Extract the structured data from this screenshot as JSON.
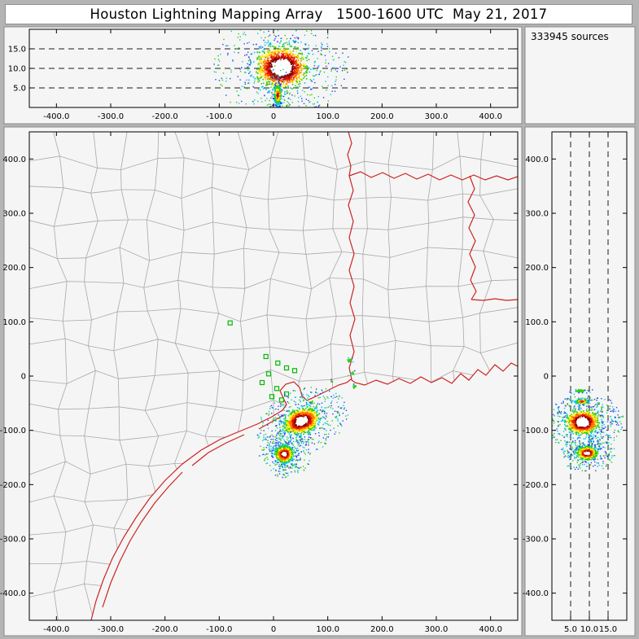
{
  "window": {
    "title": "Houston Lightning Mapping Array   1500-1600 UTC  May 21, 2017"
  },
  "sources_label": "333945 sources",
  "colors": {
    "frame": "#b4b4b4",
    "panel_bg": "#f5f5f5",
    "titlebar_bg": "#ffffff",
    "county_line": "#a8a8a8",
    "state_line": "#cc2222",
    "station": "#00bb00",
    "dashed_line": "#1a1a1a",
    "colormap": [
      "#ffffff",
      "#7a0000",
      "#dd1100",
      "#ff7700",
      "#ffee00",
      "#33cc00",
      "#00c8e8",
      "#2244ee"
    ]
  },
  "panels": {
    "ew_altitude": {
      "x_tick_labels": [
        "-400.0",
        "-300.0",
        "-200.0",
        "-100.0",
        "0",
        "100.0",
        "200.0",
        "300.0",
        "400.0"
      ],
      "x_tick_values": [
        -400,
        -300,
        -200,
        -100,
        0,
        100,
        200,
        300,
        400
      ],
      "y_tick_labels": [
        "5.0",
        "10.0",
        "15.0"
      ],
      "y_tick_values": [
        5,
        10,
        15
      ],
      "dashed_altitudes": [
        5,
        10,
        15
      ]
    },
    "plan_view": {
      "x_tick_labels": [
        "-400.0",
        "-300.0",
        "-200.0",
        "-100.0",
        "0",
        "100.0",
        "200.0",
        "300.0",
        "400.0"
      ],
      "x_tick_values": [
        -400,
        -300,
        -200,
        -100,
        0,
        100,
        200,
        300,
        400
      ],
      "y_tick_labels": [
        "400.0",
        "300.0",
        "200.0",
        "100.0",
        "0",
        "-100.0",
        "-200.0",
        "-300.0",
        "-400.0"
      ],
      "y_tick_values": [
        400,
        300,
        200,
        100,
        0,
        -100,
        -200,
        -300,
        -400
      ]
    },
    "ns_altitude": {
      "x_tick_labels": [
        "5.0",
        "10.0",
        "15.0"
      ],
      "x_tick_values": [
        5,
        10,
        15
      ],
      "dashed_altitudes": [
        5,
        10,
        15
      ],
      "y_tick_labels": [
        "400.0",
        "300.0",
        "200.0",
        "100.0",
        "0",
        "-100.0",
        "-200.0",
        "-300.0",
        "-400.0"
      ],
      "y_tick_values": [
        400,
        300,
        200,
        100,
        0,
        -100,
        -200,
        -300,
        -400
      ]
    }
  },
  "chart_data": [
    {
      "id": "ew_altitude_panel",
      "type": "heatmap",
      "description": "Lightning source density, altitude (km) vs east-west distance (km)",
      "xlim": [
        -450,
        450
      ],
      "ylim": [
        0,
        20
      ],
      "dashed_gridlines_km": [
        5,
        10,
        15
      ],
      "density_blobs": [
        {
          "x_km": 15,
          "alt_km": 10.2,
          "x_radius_km": 55,
          "alt_radius_km": 6.2,
          "core": 0.34,
          "points": 3000
        },
        {
          "x_km": 8,
          "alt_km": 3.2,
          "x_radius_km": 9,
          "alt_radius_km": 3.6,
          "core": 0,
          "points": 650
        }
      ]
    },
    {
      "id": "plan_view_panel",
      "type": "heatmap",
      "description": "Plan view of lightning source density over southeast Texas and Gulf coast",
      "xlim": [
        -450,
        450
      ],
      "ylim": [
        -450,
        450
      ],
      "total_sources": 333945,
      "lma_stations_km": [
        [
          -80,
          98
        ],
        [
          -14,
          36
        ],
        [
          8,
          24
        ],
        [
          24,
          15
        ],
        [
          39,
          10
        ],
        [
          -9,
          4
        ],
        [
          -21,
          -12
        ],
        [
          6,
          -23
        ],
        [
          24,
          -33
        ],
        [
          15,
          -44
        ],
        [
          -3,
          -38
        ]
      ],
      "density_blobs": [
        {
          "x_km": 52,
          "y_km": -83,
          "x_radius_km": 38,
          "y_radius_km": 26,
          "rot_deg": -20,
          "core": 0.3,
          "points": 3000
        },
        {
          "x_km": 20,
          "y_km": -144,
          "x_radius_km": 21,
          "y_radius_km": 19,
          "rot_deg": 0,
          "core": 0.2,
          "points": 1700
        }
      ],
      "speckle_clusters": [
        {
          "x_km": 140,
          "y_km": 30,
          "r_km": 6,
          "points": 16,
          "min_band": 5
        },
        {
          "x_km": 146,
          "y_km": 5,
          "r_km": 6,
          "points": 14,
          "min_band": 5
        },
        {
          "x_km": 150,
          "y_km": -20,
          "r_km": 5,
          "points": 12,
          "min_band": 5
        },
        {
          "x_km": 70,
          "y_km": -48,
          "r_km": 5,
          "points": 10,
          "min_band": 5
        },
        {
          "x_km": 108,
          "y_km": -10,
          "r_km": 4,
          "points": 8,
          "min_band": 5
        }
      ]
    },
    {
      "id": "ns_altitude_panel",
      "type": "heatmap",
      "description": "Lightning source density, north-south distance (km) vs altitude (km)",
      "xlim": [
        0,
        20
      ],
      "ylim": [
        -450,
        450
      ],
      "dashed_gridlines_km": [
        5,
        10,
        15
      ],
      "density_blobs": [
        {
          "alt_km": 8.2,
          "y_km": -85,
          "alt_radius_km": 4.8,
          "y_radius_km": 24,
          "core": 0.35,
          "points": 2800
        },
        {
          "alt_km": 9.4,
          "y_km": -142,
          "alt_radius_km": 3.2,
          "y_radius_km": 15,
          "core": 0.22,
          "points": 1500
        },
        {
          "alt_km": 8.0,
          "y_km": -47,
          "alt_radius_km": 2.4,
          "y_radius_km": 6,
          "core": 0,
          "points": 220,
          "min_band": 2
        },
        {
          "alt_km": 7.4,
          "y_km": -27,
          "alt_radius_km": 2.0,
          "y_radius_km": 4,
          "core": 0,
          "points": 70,
          "min_band": 5
        }
      ]
    }
  ]
}
